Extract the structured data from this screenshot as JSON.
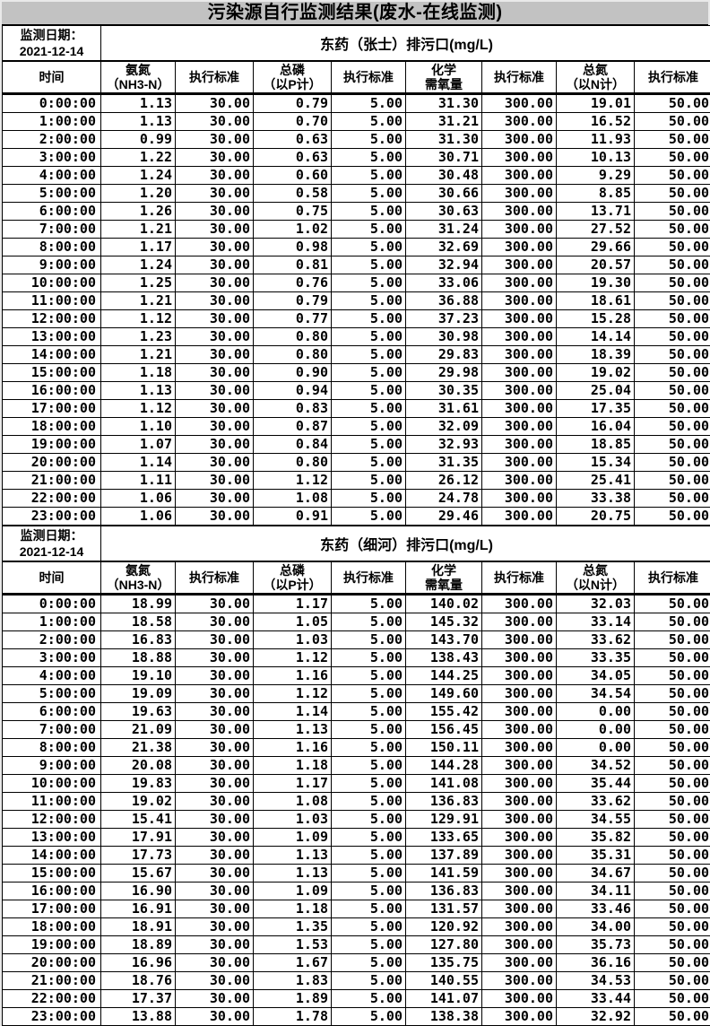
{
  "title": "污染源自行监测结果(废水-在线监测)",
  "tables": [
    {
      "date_label": "监测日期：",
      "date_value": "2021-12-14",
      "outlet_title": "东药（张士）排污口(mg/L)",
      "columns": [
        {
          "line1": "时间",
          "line2": ""
        },
        {
          "line1": "氨氮",
          "line2": "（NH3-N）"
        },
        {
          "line1": "执行标准",
          "line2": ""
        },
        {
          "line1": "总磷",
          "line2": "（以P计）"
        },
        {
          "line1": "执行标准",
          "line2": ""
        },
        {
          "line1": "化学",
          "line2": "需氧量"
        },
        {
          "line1": "执行标准",
          "line2": ""
        },
        {
          "line1": "总氮",
          "line2": "（以N计）"
        },
        {
          "line1": "执行标准",
          "line2": ""
        }
      ],
      "rows": [
        [
          "0:00:00",
          "1.13",
          "30.00",
          "0.79",
          "5.00",
          "31.30",
          "300.00",
          "19.01",
          "50.00"
        ],
        [
          "1:00:00",
          "1.13",
          "30.00",
          "0.70",
          "5.00",
          "31.21",
          "300.00",
          "16.52",
          "50.00"
        ],
        [
          "2:00:00",
          "0.99",
          "30.00",
          "0.63",
          "5.00",
          "31.30",
          "300.00",
          "11.93",
          "50.00"
        ],
        [
          "3:00:00",
          "1.22",
          "30.00",
          "0.63",
          "5.00",
          "30.71",
          "300.00",
          "10.13",
          "50.00"
        ],
        [
          "4:00:00",
          "1.24",
          "30.00",
          "0.60",
          "5.00",
          "30.48",
          "300.00",
          "9.29",
          "50.00"
        ],
        [
          "5:00:00",
          "1.20",
          "30.00",
          "0.58",
          "5.00",
          "30.66",
          "300.00",
          "8.85",
          "50.00"
        ],
        [
          "6:00:00",
          "1.26",
          "30.00",
          "0.75",
          "5.00",
          "30.63",
          "300.00",
          "13.71",
          "50.00"
        ],
        [
          "7:00:00",
          "1.21",
          "30.00",
          "1.02",
          "5.00",
          "31.24",
          "300.00",
          "27.52",
          "50.00"
        ],
        [
          "8:00:00",
          "1.17",
          "30.00",
          "0.98",
          "5.00",
          "32.69",
          "300.00",
          "29.66",
          "50.00"
        ],
        [
          "9:00:00",
          "1.24",
          "30.00",
          "0.81",
          "5.00",
          "32.94",
          "300.00",
          "20.57",
          "50.00"
        ],
        [
          "10:00:00",
          "1.25",
          "30.00",
          "0.76",
          "5.00",
          "33.06",
          "300.00",
          "19.30",
          "50.00"
        ],
        [
          "11:00:00",
          "1.21",
          "30.00",
          "0.79",
          "5.00",
          "36.88",
          "300.00",
          "18.61",
          "50.00"
        ],
        [
          "12:00:00",
          "1.12",
          "30.00",
          "0.77",
          "5.00",
          "37.23",
          "300.00",
          "15.28",
          "50.00"
        ],
        [
          "13:00:00",
          "1.23",
          "30.00",
          "0.80",
          "5.00",
          "30.98",
          "300.00",
          "14.14",
          "50.00"
        ],
        [
          "14:00:00",
          "1.21",
          "30.00",
          "0.80",
          "5.00",
          "29.83",
          "300.00",
          "18.39",
          "50.00"
        ],
        [
          "15:00:00",
          "1.18",
          "30.00",
          "0.90",
          "5.00",
          "29.98",
          "300.00",
          "19.02",
          "50.00"
        ],
        [
          "16:00:00",
          "1.13",
          "30.00",
          "0.94",
          "5.00",
          "30.35",
          "300.00",
          "25.04",
          "50.00"
        ],
        [
          "17:00:00",
          "1.12",
          "30.00",
          "0.83",
          "5.00",
          "31.61",
          "300.00",
          "17.35",
          "50.00"
        ],
        [
          "18:00:00",
          "1.10",
          "30.00",
          "0.87",
          "5.00",
          "32.09",
          "300.00",
          "16.04",
          "50.00"
        ],
        [
          "19:00:00",
          "1.07",
          "30.00",
          "0.84",
          "5.00",
          "32.93",
          "300.00",
          "18.85",
          "50.00"
        ],
        [
          "20:00:00",
          "1.14",
          "30.00",
          "0.80",
          "5.00",
          "31.35",
          "300.00",
          "15.34",
          "50.00"
        ],
        [
          "21:00:00",
          "1.11",
          "30.00",
          "1.12",
          "5.00",
          "26.12",
          "300.00",
          "25.41",
          "50.00"
        ],
        [
          "22:00:00",
          "1.06",
          "30.00",
          "1.08",
          "5.00",
          "24.78",
          "300.00",
          "33.38",
          "50.00"
        ],
        [
          "23:00:00",
          "1.06",
          "30.00",
          "0.91",
          "5.00",
          "29.46",
          "300.00",
          "20.75",
          "50.00"
        ]
      ]
    },
    {
      "date_label": "监测日期：",
      "date_value": "2021-12-14",
      "outlet_title": "东药（细河）排污口(mg/L)",
      "columns": [
        {
          "line1": "时间",
          "line2": ""
        },
        {
          "line1": "氨氮",
          "line2": "（NH3-N）"
        },
        {
          "line1": "执行标准",
          "line2": ""
        },
        {
          "line1": "总磷",
          "line2": "（以P计）"
        },
        {
          "line1": "执行标准",
          "line2": ""
        },
        {
          "line1": "化学",
          "line2": "需氧量"
        },
        {
          "line1": "执行标准",
          "line2": ""
        },
        {
          "line1": "总氮",
          "line2": "（以N计）"
        },
        {
          "line1": "执行标准",
          "line2": ""
        }
      ],
      "rows": [
        [
          "0:00:00",
          "18.99",
          "30.00",
          "1.17",
          "5.00",
          "140.02",
          "300.00",
          "32.03",
          "50.00"
        ],
        [
          "1:00:00",
          "18.58",
          "30.00",
          "1.05",
          "5.00",
          "145.32",
          "300.00",
          "33.14",
          "50.00"
        ],
        [
          "2:00:00",
          "16.83",
          "30.00",
          "1.03",
          "5.00",
          "143.70",
          "300.00",
          "33.62",
          "50.00"
        ],
        [
          "3:00:00",
          "18.88",
          "30.00",
          "1.12",
          "5.00",
          "138.43",
          "300.00",
          "33.35",
          "50.00"
        ],
        [
          "4:00:00",
          "19.10",
          "30.00",
          "1.16",
          "5.00",
          "144.25",
          "300.00",
          "34.05",
          "50.00"
        ],
        [
          "5:00:00",
          "19.09",
          "30.00",
          "1.12",
          "5.00",
          "149.60",
          "300.00",
          "34.54",
          "50.00"
        ],
        [
          "6:00:00",
          "19.63",
          "30.00",
          "1.14",
          "5.00",
          "155.42",
          "300.00",
          "0.00",
          "50.00"
        ],
        [
          "7:00:00",
          "21.09",
          "30.00",
          "1.13",
          "5.00",
          "156.45",
          "300.00",
          "0.00",
          "50.00"
        ],
        [
          "8:00:00",
          "21.38",
          "30.00",
          "1.16",
          "5.00",
          "150.11",
          "300.00",
          "0.00",
          "50.00"
        ],
        [
          "9:00:00",
          "20.08",
          "30.00",
          "1.18",
          "5.00",
          "144.28",
          "300.00",
          "34.52",
          "50.00"
        ],
        [
          "10:00:00",
          "19.83",
          "30.00",
          "1.17",
          "5.00",
          "141.08",
          "300.00",
          "35.44",
          "50.00"
        ],
        [
          "11:00:00",
          "19.02",
          "30.00",
          "1.08",
          "5.00",
          "136.83",
          "300.00",
          "33.62",
          "50.00"
        ],
        [
          "12:00:00",
          "15.41",
          "30.00",
          "1.03",
          "5.00",
          "129.91",
          "300.00",
          "34.55",
          "50.00"
        ],
        [
          "13:00:00",
          "17.91",
          "30.00",
          "1.09",
          "5.00",
          "133.65",
          "300.00",
          "35.82",
          "50.00"
        ],
        [
          "14:00:00",
          "17.73",
          "30.00",
          "1.13",
          "5.00",
          "137.89",
          "300.00",
          "35.31",
          "50.00"
        ],
        [
          "15:00:00",
          "15.67",
          "30.00",
          "1.13",
          "5.00",
          "141.59",
          "300.00",
          "34.67",
          "50.00"
        ],
        [
          "16:00:00",
          "16.90",
          "30.00",
          "1.09",
          "5.00",
          "136.83",
          "300.00",
          "34.11",
          "50.00"
        ],
        [
          "17:00:00",
          "16.91",
          "30.00",
          "1.18",
          "5.00",
          "131.57",
          "300.00",
          "33.46",
          "50.00"
        ],
        [
          "18:00:00",
          "18.91",
          "30.00",
          "1.35",
          "5.00",
          "120.92",
          "300.00",
          "34.00",
          "50.00"
        ],
        [
          "19:00:00",
          "18.89",
          "30.00",
          "1.53",
          "5.00",
          "127.80",
          "300.00",
          "35.73",
          "50.00"
        ],
        [
          "20:00:00",
          "16.96",
          "30.00",
          "1.67",
          "5.00",
          "135.75",
          "300.00",
          "36.16",
          "50.00"
        ],
        [
          "21:00:00",
          "18.76",
          "30.00",
          "1.83",
          "5.00",
          "140.55",
          "300.00",
          "34.53",
          "50.00"
        ],
        [
          "22:00:00",
          "17.37",
          "30.00",
          "1.89",
          "5.00",
          "141.07",
          "300.00",
          "33.44",
          "50.00"
        ],
        [
          "23:00:00",
          "13.88",
          "30.00",
          "1.78",
          "5.00",
          "138.38",
          "300.00",
          "32.92",
          "50.00"
        ]
      ]
    }
  ]
}
